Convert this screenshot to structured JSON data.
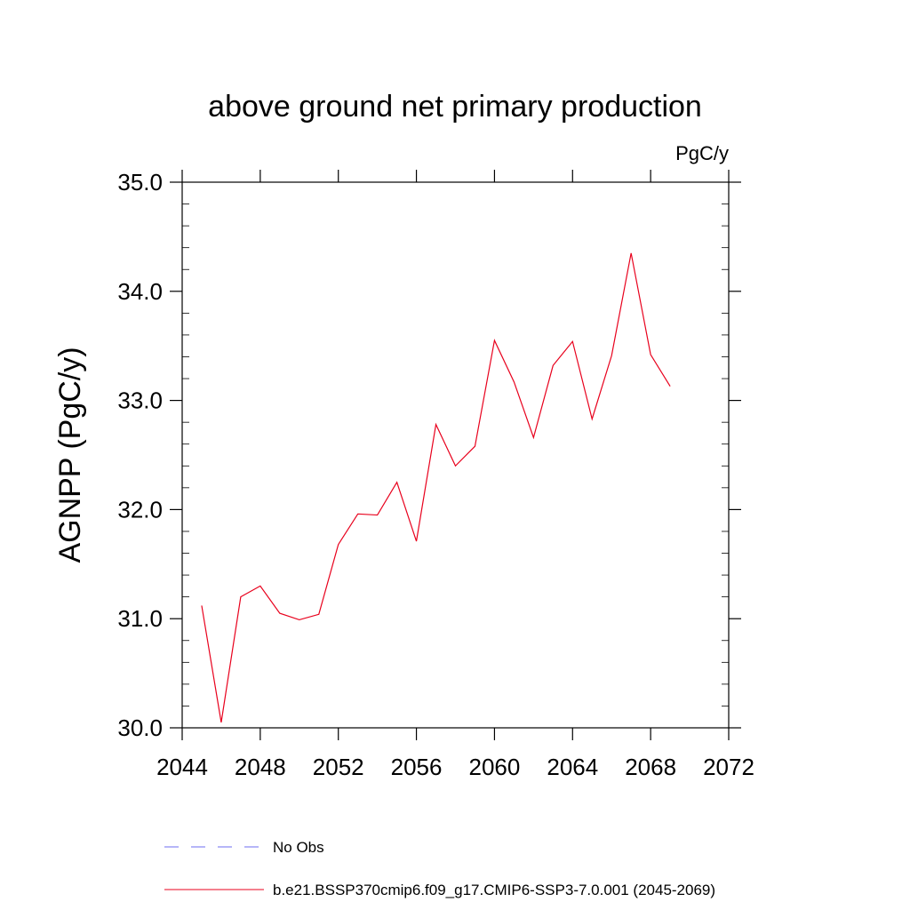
{
  "chart_data": {
    "type": "line",
    "title": "above ground net primary production",
    "units_label": "PgC/y",
    "ylabel": "AGNPP  (PgC/y)",
    "xlabel": "",
    "xlim": [
      2044,
      2072
    ],
    "ylim": [
      30.0,
      35.0
    ],
    "x_major_ticks": [
      2044,
      2048,
      2052,
      2056,
      2060,
      2064,
      2068,
      2072
    ],
    "x_tick_labels": [
      "2044",
      "2048",
      "2052",
      "2056",
      "2060",
      "2064",
      "2068",
      "2072"
    ],
    "y_major_ticks": [
      30.0,
      31.0,
      32.0,
      33.0,
      34.0,
      35.0
    ],
    "y_tick_labels": [
      "30.0",
      "31.0",
      "32.0",
      "33.0",
      "34.0",
      "35.0"
    ],
    "grid": false,
    "legend_position": "bottom",
    "series": [
      {
        "name": "b.e21.BSSP370cmip6.f09_g17.CMIP6-SSP3-7.0.001 (2045-2069)",
        "color": "#e8001c",
        "style": "solid",
        "x": [
          2045,
          2046,
          2047,
          2048,
          2049,
          2050,
          2051,
          2052,
          2053,
          2054,
          2055,
          2056,
          2057,
          2058,
          2059,
          2060,
          2061,
          2062,
          2063,
          2064,
          2065,
          2066,
          2067,
          2068,
          2069
        ],
        "y": [
          31.12,
          30.05,
          31.2,
          31.3,
          31.05,
          30.99,
          31.04,
          31.68,
          31.96,
          31.95,
          32.25,
          31.71,
          32.78,
          32.4,
          32.58,
          33.55,
          33.17,
          32.66,
          33.32,
          33.54,
          32.83,
          33.41,
          34.35,
          33.42,
          33.13
        ]
      },
      {
        "name": "No Obs",
        "color": "#6e6ef0",
        "style": "dashed",
        "x": [],
        "y": []
      }
    ]
  }
}
